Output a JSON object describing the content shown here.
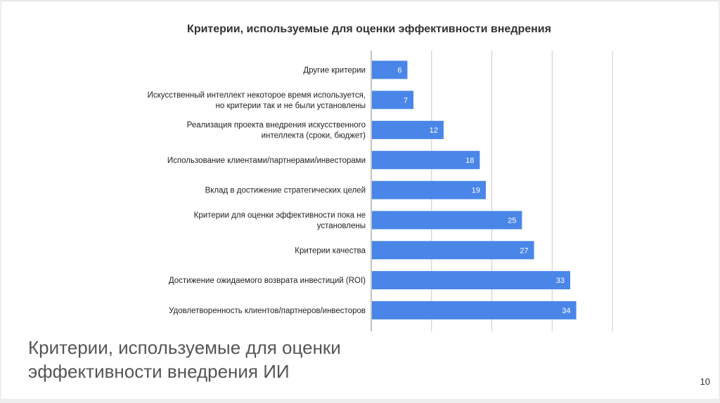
{
  "slide": {
    "caption_line1": "Критерии, используемые для оценки",
    "caption_line2": "эффективности внедрения ИИ",
    "page_number": "10"
  },
  "colors": {
    "bar": "#4a86e8",
    "gridline": "#cccccc",
    "caption": "#555555"
  },
  "chart_data": {
    "type": "bar",
    "orientation": "horizontal",
    "title": "Критерии, используемые для оценки эффективности внедрения",
    "categories": [
      [
        "Другие критерии"
      ],
      [
        "Искусственный интеллект некоторое время используется,",
        "но критерии так и не были установлены"
      ],
      [
        "Реализация проекта внедрения искусственного",
        "интеллекта (сроки, бюджет)"
      ],
      [
        "Использование клиентами/партнерами/инвесторами"
      ],
      [
        "Вклад в достижение стратегических целей"
      ],
      [
        "Критерии для оценки эффективности пока не",
        "установлены"
      ],
      [
        "Критерии качества"
      ],
      [
        "Достижение ожидаемого возврата инвестиций (ROI)"
      ],
      [
        "Удовлетворенность клиентов/партнеров/инвесторов"
      ]
    ],
    "values": [
      6,
      7,
      12,
      18,
      19,
      25,
      27,
      33,
      34
    ],
    "xlim": [
      0,
      40
    ],
    "grid": true,
    "data_labels": true
  }
}
